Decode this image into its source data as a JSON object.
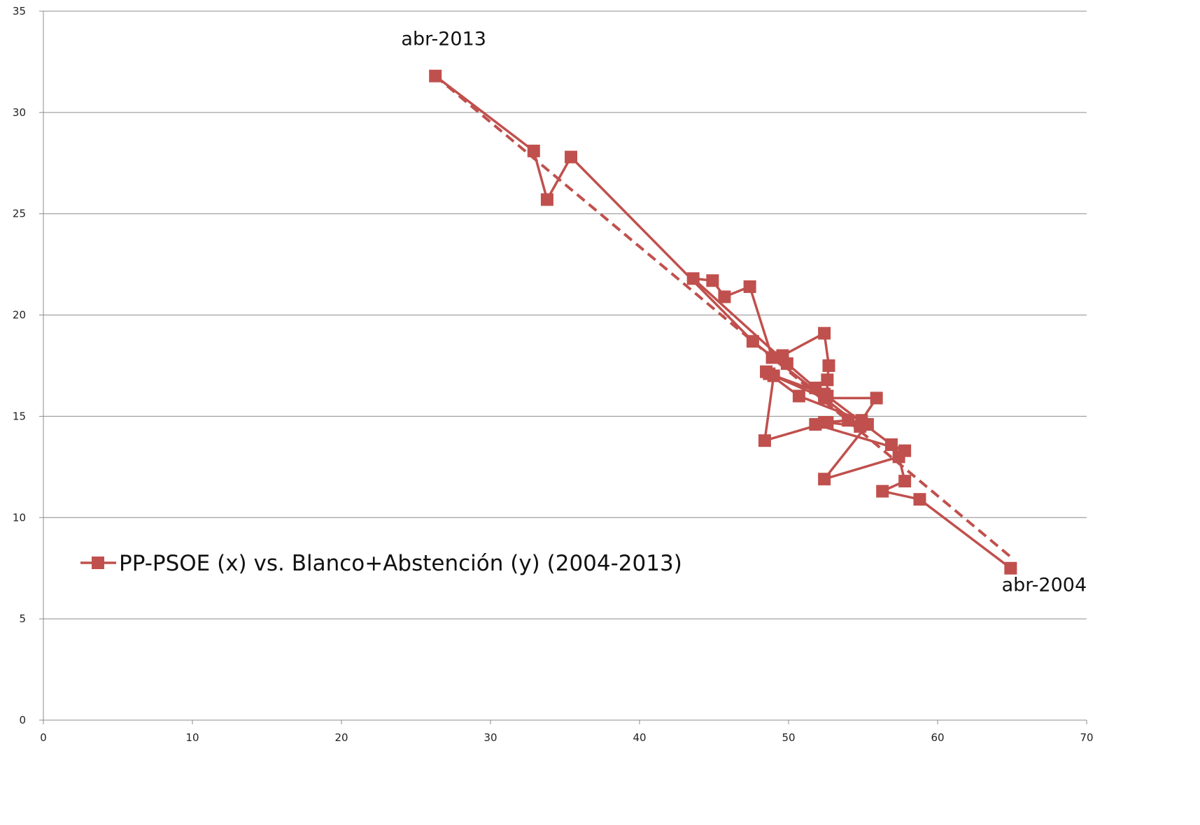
{
  "chart_data": {
    "type": "scatter",
    "title": "",
    "xlabel": "",
    "ylabel": "",
    "xlim": [
      0,
      70
    ],
    "ylim": [
      0,
      35
    ],
    "x_ticks": [
      "0",
      "10",
      "20",
      "30",
      "40",
      "50",
      "60",
      "70"
    ],
    "y_ticks": [
      "0",
      "5",
      "10",
      "15",
      "20",
      "25",
      "30",
      "35"
    ],
    "grid": "horizontal",
    "legend_position": "left-middle",
    "colors": {
      "series": "#c0504d",
      "grid": "#8c8c8c",
      "axis": "#8c8c8c"
    },
    "series": [
      {
        "name": "PP-PSOE (x) vs. Blanco+Abstención (y) (2004-2013)",
        "marker": "square",
        "line": "solid",
        "points": [
          [
            64.9,
            7.5
          ],
          [
            58.8,
            10.9
          ],
          [
            56.3,
            11.3
          ],
          [
            57.8,
            11.8
          ],
          [
            57.4,
            13.0
          ],
          [
            52.4,
            11.9
          ],
          [
            55.3,
            14.6
          ],
          [
            54.0,
            14.8
          ],
          [
            52.4,
            14.7
          ],
          [
            51.8,
            14.6
          ],
          [
            57.8,
            13.3
          ],
          [
            56.9,
            13.6
          ],
          [
            52.6,
            16.0
          ],
          [
            52.6,
            16.8
          ],
          [
            52.7,
            17.5
          ],
          [
            52.4,
            19.1
          ],
          [
            49.6,
            18.0
          ],
          [
            48.9,
            17.9
          ],
          [
            47.4,
            21.4
          ],
          [
            45.7,
            20.9
          ],
          [
            44.9,
            21.7
          ],
          [
            43.6,
            21.8
          ],
          [
            49.9,
            17.6
          ],
          [
            51.8,
            16.4
          ],
          [
            52.4,
            16.1
          ],
          [
            48.7,
            17.1
          ],
          [
            48.5,
            17.2
          ],
          [
            50.7,
            16.0
          ],
          [
            54.9,
            14.8
          ],
          [
            55.9,
            15.9
          ],
          [
            52.4,
            15.9
          ],
          [
            49.0,
            17.0
          ],
          [
            48.4,
            13.8
          ],
          [
            52.6,
            14.7
          ],
          [
            54.8,
            14.5
          ],
          [
            47.6,
            18.7
          ],
          [
            35.4,
            27.8
          ],
          [
            33.8,
            25.7
          ],
          [
            32.9,
            28.1
          ],
          [
            26.3,
            31.8
          ]
        ],
        "annotations": [
          {
            "label": "abr-2013",
            "x": 26.3,
            "y": 31.8
          },
          {
            "label": "abr-2004",
            "x": 64.9,
            "y": 7.5
          }
        ]
      }
    ],
    "trendline": {
      "type": "linear",
      "line": "dashed",
      "start": [
        26.3,
        31.8
      ],
      "end": [
        65.0,
        8.0
      ]
    }
  }
}
